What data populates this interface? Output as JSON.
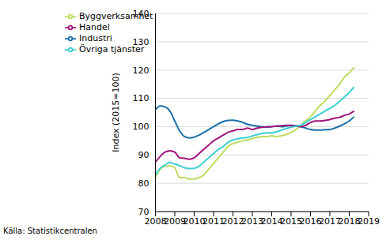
{
  "chart_data": {
    "type": "line",
    "y_label": "Index (2015=100)",
    "source": "Källa: Statistikcentralen",
    "x": [
      2008,
      2008.25,
      2008.5,
      2008.75,
      2009,
      2009.25,
      2009.5,
      2009.75,
      2010,
      2010.25,
      2010.5,
      2010.75,
      2011,
      2011.25,
      2011.5,
      2011.75,
      2012,
      2012.25,
      2012.5,
      2012.75,
      2013,
      2013.25,
      2013.5,
      2013.75,
      2014,
      2014.25,
      2014.5,
      2014.75,
      2015,
      2015.25,
      2015.5,
      2015.75,
      2016,
      2016.25,
      2016.5,
      2016.75,
      2017,
      2017.25,
      2017.5,
      2017.75,
      2018,
      2018.25
    ],
    "series": [
      {
        "name": "Industri",
        "color": "#1a6fa8",
        "values": [
          106,
          107.3,
          107,
          105.5,
          102,
          98.5,
          96.5,
          96,
          96.3,
          97,
          98,
          99,
          100,
          101,
          101.8,
          102.2,
          102.3,
          102,
          101.5,
          100.8,
          100.5,
          100.2,
          100,
          99.8,
          100,
          100.2,
          100,
          100.2,
          100.5,
          100.3,
          100,
          99.5,
          99,
          98.8,
          98.8,
          98.9,
          99,
          99.5,
          100.2,
          101,
          102,
          103.5
        ]
      },
      {
        "name": "Byggverksamhet",
        "color": "#bcdd5e",
        "values": [
          82,
          85,
          86,
          86.2,
          85.5,
          82,
          82,
          81.5,
          81.5,
          82,
          83,
          85,
          87,
          89,
          91,
          93,
          94,
          94.5,
          95,
          95.3,
          95.8,
          96.2,
          96.5,
          96.5,
          96.8,
          96.5,
          96.8,
          97.2,
          98,
          99,
          100.5,
          102,
          103.5,
          105.5,
          107.5,
          109,
          111,
          113,
          115,
          117.5,
          119,
          121
        ]
      },
      {
        "name": "Handel",
        "color": "#a1147a",
        "values": [
          87.5,
          89.5,
          91,
          91.5,
          91,
          89,
          88.8,
          88.5,
          89,
          90.5,
          92,
          93.5,
          95,
          96,
          97,
          98,
          98.5,
          99,
          99,
          99.5,
          99,
          99.5,
          99.8,
          100,
          100,
          100.2,
          100.3,
          100.5,
          100.5,
          100.3,
          100,
          100.5,
          101.5,
          102,
          102,
          102.2,
          102.5,
          103,
          103.3,
          104,
          104.5,
          105.5
        ]
      },
      {
        "name": "Övriga tjänster",
        "color": "#3ccfcf",
        "values": [
          83,
          85.3,
          86.5,
          87.3,
          86.8,
          86.2,
          85.5,
          85.2,
          85.3,
          86,
          87.5,
          89,
          90.5,
          92,
          93,
          94.5,
          95.3,
          95.7,
          96,
          96.2,
          96.7,
          97.2,
          97.6,
          97.8,
          97.8,
          98.2,
          98.8,
          99.3,
          99.8,
          100.2,
          100.5,
          101.5,
          102.5,
          103.5,
          104.5,
          105.5,
          106.5,
          107.5,
          109,
          110.5,
          112,
          114
        ]
      }
    ],
    "xlim": [
      2008,
      2019
    ],
    "xticks": [
      2008,
      2009,
      2010,
      2011,
      2012,
      2013,
      2014,
      2015,
      2016,
      2017,
      2018,
      2019
    ],
    "ylim": [
      70,
      140
    ],
    "yticks": [
      70,
      80,
      90,
      100,
      110,
      120,
      130,
      140
    ],
    "grid": true,
    "legend": "top-left"
  }
}
